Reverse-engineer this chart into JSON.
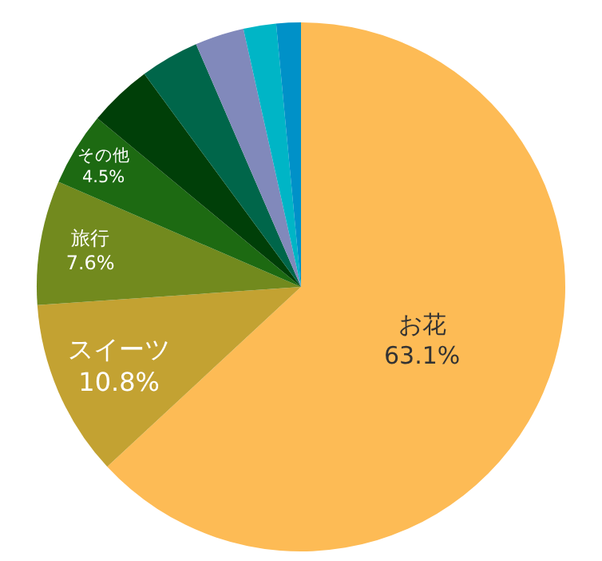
{
  "chart_data": {
    "type": "pie",
    "categories": [
      "お花",
      "スイーツ",
      "旅行",
      "その他",
      null,
      null,
      null,
      null,
      null
    ],
    "values": [
      63.1,
      10.8,
      7.6,
      4.5,
      3.9,
      3.6,
      3.0,
      2.0,
      1.5
    ],
    "value_labels": [
      "63.1%",
      "10.8%",
      "7.6%",
      "4.5%",
      null,
      null,
      null,
      null,
      null
    ],
    "colors": [
      "#fdbb55",
      "#c3a232",
      "#728a1e",
      "#1d6a12",
      "#003f08",
      "#00664a",
      "#8189bb",
      "#00b5c6",
      "#0091c8"
    ],
    "legend": false
  }
}
